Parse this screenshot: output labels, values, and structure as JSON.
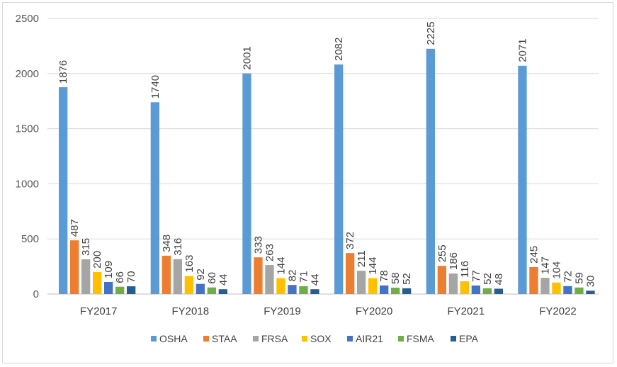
{
  "chart_data": {
    "type": "bar",
    "categories": [
      "FY2017",
      "FY2018",
      "FY2019",
      "FY2020",
      "FY2021",
      "FY2022"
    ],
    "series": [
      {
        "name": "OSHA",
        "color": "#5b9bd5",
        "values": [
          1876,
          1740,
          2001,
          2082,
          2225,
          2071
        ]
      },
      {
        "name": "STAA",
        "color": "#ed7d31",
        "values": [
          487,
          348,
          333,
          372,
          255,
          245
        ]
      },
      {
        "name": "FRSA",
        "color": "#a5a5a5",
        "values": [
          315,
          316,
          263,
          211,
          186,
          147
        ]
      },
      {
        "name": "SOX",
        "color": "#ffc000",
        "values": [
          200,
          163,
          144,
          144,
          116,
          104
        ]
      },
      {
        "name": "AIR21",
        "color": "#4472c4",
        "values": [
          109,
          92,
          82,
          78,
          77,
          72
        ]
      },
      {
        "name": "FSMA",
        "color": "#70ad47",
        "values": [
          66,
          60,
          71,
          58,
          52,
          59
        ]
      },
      {
        "name": "EPA",
        "color": "#255e91",
        "values": [
          70,
          44,
          44,
          52,
          48,
          30
        ]
      }
    ],
    "yticks": [
      "0",
      "500",
      "1000",
      "1500",
      "2000",
      "2500"
    ],
    "ylim": [
      0,
      2500
    ],
    "grid": true,
    "legend_position": "bottom",
    "title": "",
    "xlabel": "",
    "ylabel": ""
  }
}
